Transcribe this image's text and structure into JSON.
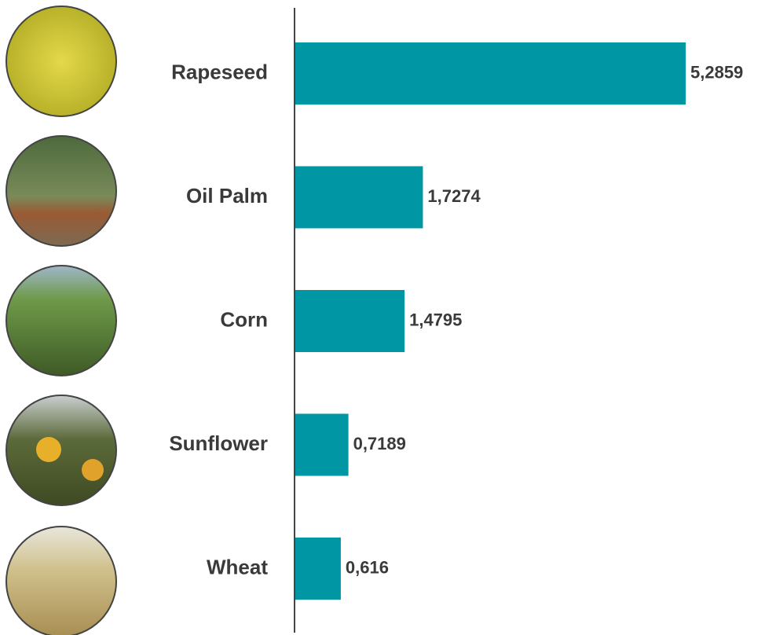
{
  "chart_data": {
    "type": "bar",
    "orientation": "horizontal",
    "categories": [
      "Rapeseed",
      "Oil Palm",
      "Corn",
      "Sunflower",
      "Wheat"
    ],
    "values": [
      5.2859,
      1.7274,
      1.4795,
      0.7189,
      0.616
    ],
    "value_labels": [
      "5,2859",
      "1,7274",
      "1,4795",
      "0,7189",
      "0,616"
    ],
    "color": "#0096a3"
  }
}
